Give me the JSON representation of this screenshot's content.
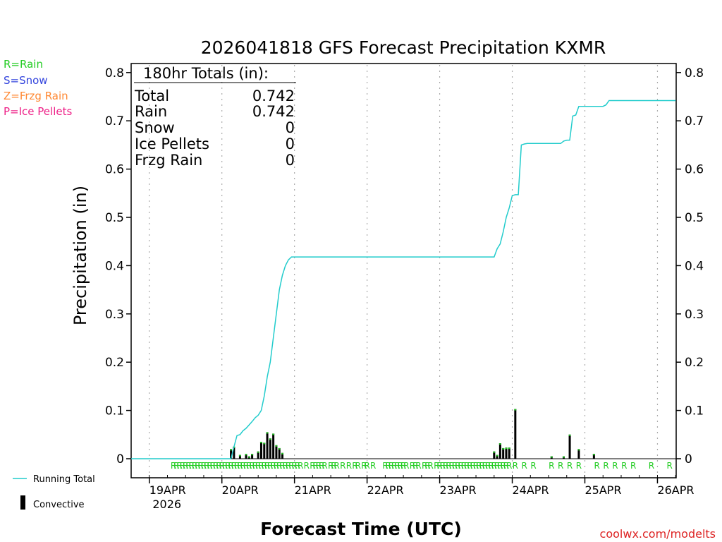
{
  "chart_data": {
    "type": "bar",
    "title": "2026041818 GFS Forecast Precipitation KXMR",
    "ylabel": "Precipitation (in)",
    "xlabel": "Forecast Time (UTC)",
    "xlim_hours": [
      0,
      180
    ],
    "ylim": [
      -0.04,
      0.82
    ],
    "yticks": [
      0,
      0.1,
      0.2,
      0.3,
      0.4,
      0.5,
      0.6,
      0.7,
      0.8
    ],
    "ytick_labels": [
      "0",
      "0.1",
      "0.2",
      "0.3",
      "0.4",
      "0.5",
      "0.6",
      "0.7",
      "0.8"
    ],
    "date_ticks": [
      {
        "hour": 6,
        "label": "19APR",
        "sub": "2026"
      },
      {
        "hour": 30,
        "label": "20APR"
      },
      {
        "hour": 54,
        "label": "21APR"
      },
      {
        "hour": 78,
        "label": "22APR"
      },
      {
        "hour": 102,
        "label": "23APR"
      },
      {
        "hour": 126,
        "label": "24APR"
      },
      {
        "hour": 150,
        "label": "25APR"
      },
      {
        "hour": 174,
        "label": "26APR"
      }
    ],
    "precip_type_legend": [
      {
        "label": "R=Rain",
        "color": "#22cc22"
      },
      {
        "label": "S=Snow",
        "color": "#3344dd"
      },
      {
        "label": "Z=Frzg Rain",
        "color": "#ff8833"
      },
      {
        "label": "P=Ice Pellets",
        "color": "#ee2288"
      }
    ],
    "totals_box": {
      "title": "180hr Totals (in):",
      "rows": [
        {
          "label": "Total",
          "value": "0.742"
        },
        {
          "label": "Rain",
          "value": "0.742"
        },
        {
          "label": "Snow",
          "value": "0"
        },
        {
          "label": "Ice Pellets",
          "value": "0"
        },
        {
          "label": "Frzg Rain",
          "value": "0"
        }
      ]
    },
    "legend": {
      "running_total": "Running Total",
      "convective": "Convective"
    },
    "colors": {
      "running_total": "#22cccc",
      "bar": "#22bb22",
      "convective": "#000000",
      "rain_marker": "#22cc22",
      "grid": "#aaaaaa"
    },
    "running_total": {
      "hours": [
        0,
        33,
        34,
        35,
        36,
        37,
        38,
        39,
        40,
        41,
        42,
        43,
        44,
        45,
        46,
        47,
        48,
        49,
        50,
        51,
        52,
        53,
        54,
        120,
        121,
        122,
        123,
        124,
        125,
        126,
        127,
        128,
        129,
        130,
        131,
        132,
        133,
        134,
        135,
        136,
        137,
        138,
        139,
        140,
        141,
        142,
        143,
        144,
        145,
        146,
        147,
        148,
        150,
        151,
        152,
        153,
        154,
        155,
        156,
        157,
        158,
        159,
        180
      ],
      "values": [
        0,
        0,
        0.025,
        0.048,
        0.05,
        0.058,
        0.063,
        0.07,
        0.077,
        0.085,
        0.09,
        0.1,
        0.13,
        0.17,
        0.2,
        0.25,
        0.3,
        0.35,
        0.38,
        0.4,
        0.412,
        0.418,
        0.418,
        0.418,
        0.435,
        0.445,
        0.47,
        0.5,
        0.52,
        0.545,
        0.547,
        0.547,
        0.65,
        0.652,
        0.653,
        0.653,
        0.653,
        0.653,
        0.653,
        0.653,
        0.653,
        0.653,
        0.653,
        0.653,
        0.653,
        0.653,
        0.658,
        0.66,
        0.66,
        0.71,
        0.712,
        0.73,
        0.73,
        0.73,
        0.73,
        0.73,
        0.73,
        0.73,
        0.73,
        0.733,
        0.742,
        0.742,
        0.742
      ]
    },
    "bars": {
      "hours": [
        33,
        34,
        35,
        36,
        37,
        38,
        39,
        40,
        41,
        42,
        43,
        44,
        45,
        46,
        47,
        48,
        49,
        50,
        51,
        120,
        121,
        122,
        123,
        124,
        125,
        127,
        139,
        143,
        145,
        148,
        153
      ],
      "values": [
        0.02,
        0.025,
        0.0,
        0.008,
        0.0,
        0.01,
        0.005,
        0.01,
        0.0,
        0.015,
        0.035,
        0.033,
        0.055,
        0.042,
        0.052,
        0.028,
        0.022,
        0.012,
        0.0,
        0.015,
        0.008,
        0.032,
        0.022,
        0.023,
        0.023,
        0.103,
        0.005,
        0.005,
        0.05,
        0.02,
        0.01
      ]
    },
    "rain_marker_hours": [
      14,
      15,
      16,
      17,
      18,
      19,
      20,
      21,
      22,
      23,
      24,
      25,
      26,
      27,
      28,
      29,
      30,
      31,
      32,
      33,
      34,
      35,
      36,
      37,
      38,
      39,
      40,
      41,
      42,
      43,
      44,
      45,
      46,
      47,
      48,
      49,
      50,
      51,
      52,
      53,
      54,
      55,
      56,
      58,
      60,
      61,
      62,
      63,
      64,
      66,
      67,
      68,
      70,
      72,
      74,
      75,
      77,
      78,
      80,
      84,
      85,
      86,
      87,
      88,
      89,
      90,
      91,
      93,
      94,
      95,
      97,
      98,
      99,
      101,
      102,
      103,
      104,
      105,
      106,
      107,
      108,
      109,
      110,
      111,
      112,
      113,
      114,
      115,
      116,
      117,
      118,
      119,
      120,
      121,
      122,
      123,
      124,
      125,
      127,
      130,
      133,
      139,
      142,
      145,
      148,
      154,
      157,
      160,
      163,
      166,
      172,
      178
    ],
    "rain_marker_label": "R"
  },
  "credit": "coolwx.com/modelts"
}
